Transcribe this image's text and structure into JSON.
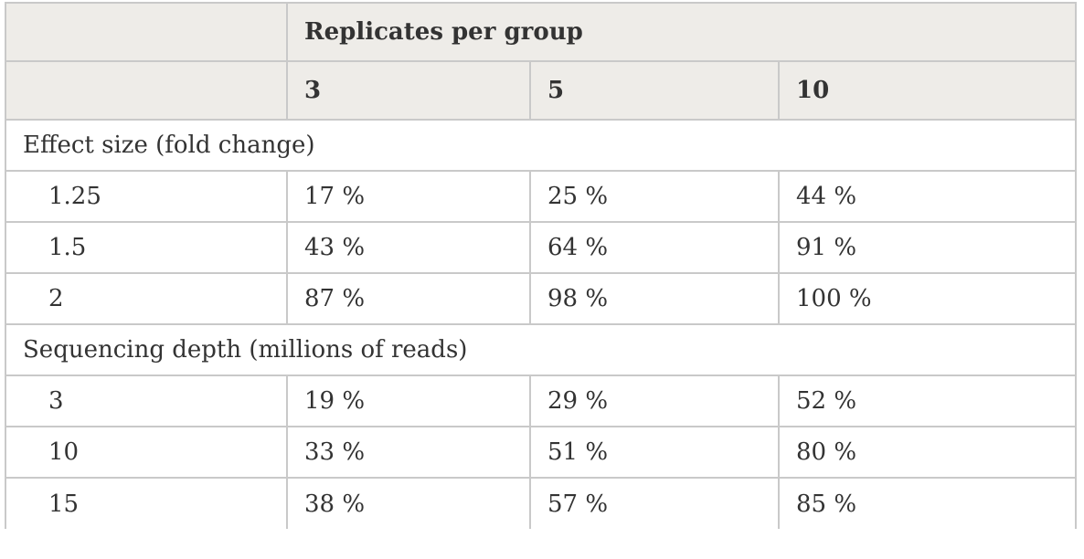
{
  "header": {
    "group_title": "Replicates per group",
    "columns": [
      "3",
      "5",
      "10"
    ]
  },
  "sections": [
    {
      "title": "Effect size (fold change)",
      "rows": [
        {
          "label": "1.25",
          "values": [
            "17 %",
            "25 %",
            "44 %"
          ]
        },
        {
          "label": "1.5",
          "values": [
            "43 %",
            "64 %",
            "91 %"
          ]
        },
        {
          "label": "2",
          "values": [
            "87 %",
            "98 %",
            "100 %"
          ]
        }
      ]
    },
    {
      "title": "Sequencing depth (millions of reads)",
      "rows": [
        {
          "label": "3",
          "values": [
            "19 %",
            "29 %",
            "52 %"
          ]
        },
        {
          "label": "10",
          "values": [
            "33 %",
            "51 %",
            "80 %"
          ]
        },
        {
          "label": "15",
          "values": [
            "38 %",
            "57 %",
            "85 %"
          ]
        }
      ]
    }
  ]
}
